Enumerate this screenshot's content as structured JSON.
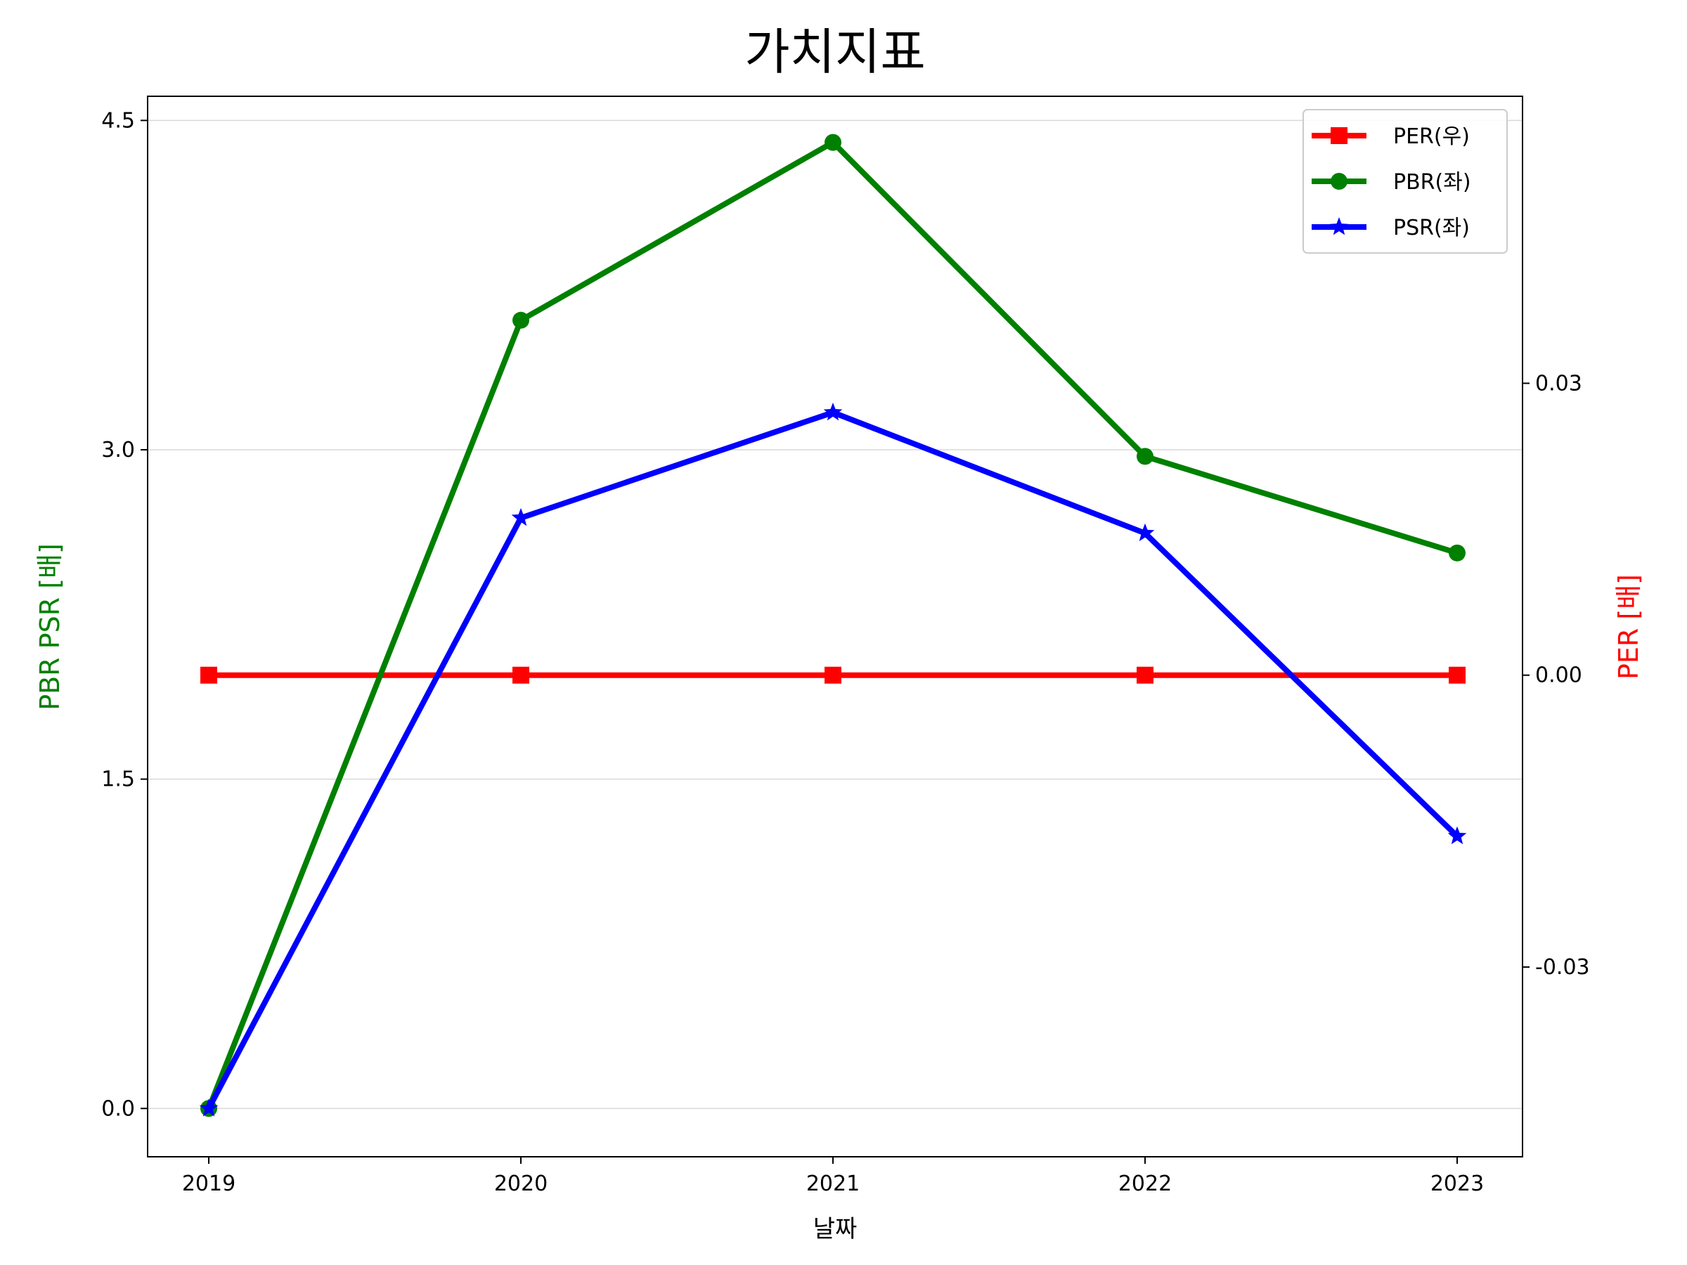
{
  "chart_data": {
    "type": "line",
    "title": "가치지표",
    "xlabel": "날짜",
    "ylabel_left": "PBR PSR [배]",
    "ylabel_right": "PER [배]",
    "categories": [
      "2019",
      "2020",
      "2021",
      "2022",
      "2023"
    ],
    "left_axis": {
      "ylim": [
        -0.22,
        4.61
      ],
      "ticks": [
        0.0,
        1.5,
        3.0,
        4.5
      ],
      "tick_labels": [
        "0.0",
        "1.5",
        "3.0",
        "4.5"
      ],
      "grid": true
    },
    "right_axis": {
      "ylim": [
        -0.0495,
        0.0595
      ],
      "ticks": [
        -0.03,
        0.0,
        0.03
      ],
      "tick_labels": [
        "-0.03",
        "0.00",
        "0.03"
      ]
    },
    "series": [
      {
        "name": "PER(우)",
        "axis": "right",
        "color": "#ff0000",
        "marker": "square",
        "values": [
          0,
          0,
          0,
          0,
          0
        ]
      },
      {
        "name": "PBR(좌)",
        "axis": "left",
        "color": "#008000",
        "marker": "circle",
        "values": [
          0.0,
          3.59,
          4.4,
          2.97,
          2.53
        ]
      },
      {
        "name": "PSR(좌)",
        "axis": "left",
        "color": "#0000ff",
        "marker": "star",
        "values": [
          0.0,
          2.69,
          3.17,
          2.62,
          1.24
        ]
      }
    ],
    "legend": {
      "position": "top-right"
    },
    "colors": {
      "left_label": "#008000",
      "right_label": "#ff0000",
      "grid": "#d9d9d9"
    }
  }
}
